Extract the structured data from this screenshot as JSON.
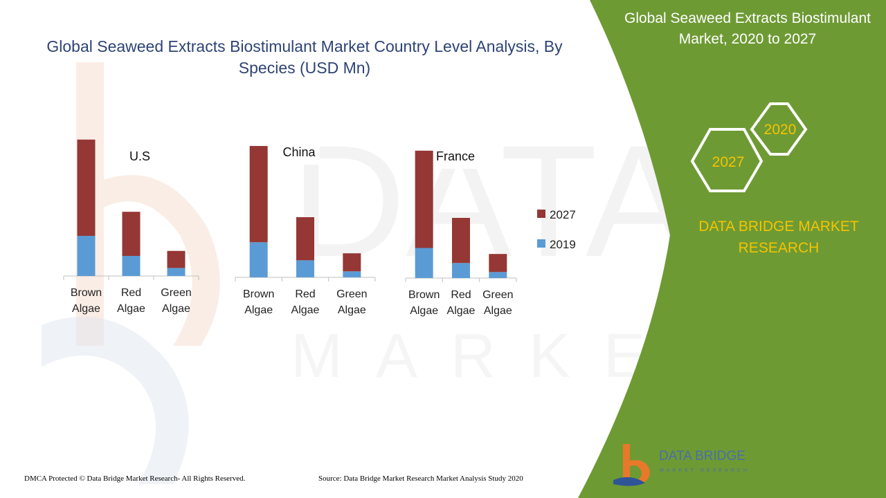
{
  "header": {
    "title": "Global Seaweed Extracts Biostimulant Market Country Level Analysis, By Species (USD Mn)"
  },
  "panel": {
    "title": "Global Seaweed Extracts Biostimulant Market, 2020 to 2027",
    "hex_labels": [
      "2020",
      "2027"
    ],
    "brand": "DATA BRIDGE MARKET RESEARCH"
  },
  "colors": {
    "series_2027": "#953735",
    "series_2019": "#5b9bd5",
    "panel_green": "#6e9a34",
    "hex_stroke": "#ffffff",
    "hex_text": "#f5c400",
    "title_blue": "#2e4375"
  },
  "legend": {
    "labels": [
      "2027",
      "2019"
    ],
    "placement": "right"
  },
  "chart_data": [
    {
      "type": "bar",
      "stacked": true,
      "title": "U.S",
      "categories": [
        "Brown Algae",
        "Red Algae",
        "Green Algae"
      ],
      "series": [
        {
          "name": "2019",
          "values": [
            40,
            20,
            8
          ]
        },
        {
          "name": "2027",
          "values": [
            96,
            44,
            17
          ]
        }
      ],
      "ylim": [
        0,
        140
      ]
    },
    {
      "type": "bar",
      "stacked": true,
      "title": "China",
      "categories": [
        "Brown Algae",
        "Red Algae",
        "Green Algae"
      ],
      "series": [
        {
          "name": "2019",
          "values": [
            35,
            17,
            6
          ]
        },
        {
          "name": "2027",
          "values": [
            96,
            43,
            18
          ]
        }
      ],
      "ylim": [
        0,
        140
      ]
    },
    {
      "type": "bar",
      "stacked": true,
      "title": "France",
      "categories": [
        "Brown Algae",
        "Red Algae",
        "Green Algae"
      ],
      "series": [
        {
          "name": "2019",
          "values": [
            30,
            15,
            6
          ]
        },
        {
          "name": "2027",
          "values": [
            97,
            45,
            18
          ]
        }
      ],
      "ylim": [
        0,
        140
      ]
    }
  ],
  "footer": {
    "dmca": "DMCA Protected © Data Bridge Market Research- All Rights Reserved.",
    "source": "Source: Data Bridge Market Research Market Analysis Study 2020"
  },
  "logo": {
    "name": "DATA BRIDGE",
    "tagline": "MARKET RESEARCH"
  }
}
